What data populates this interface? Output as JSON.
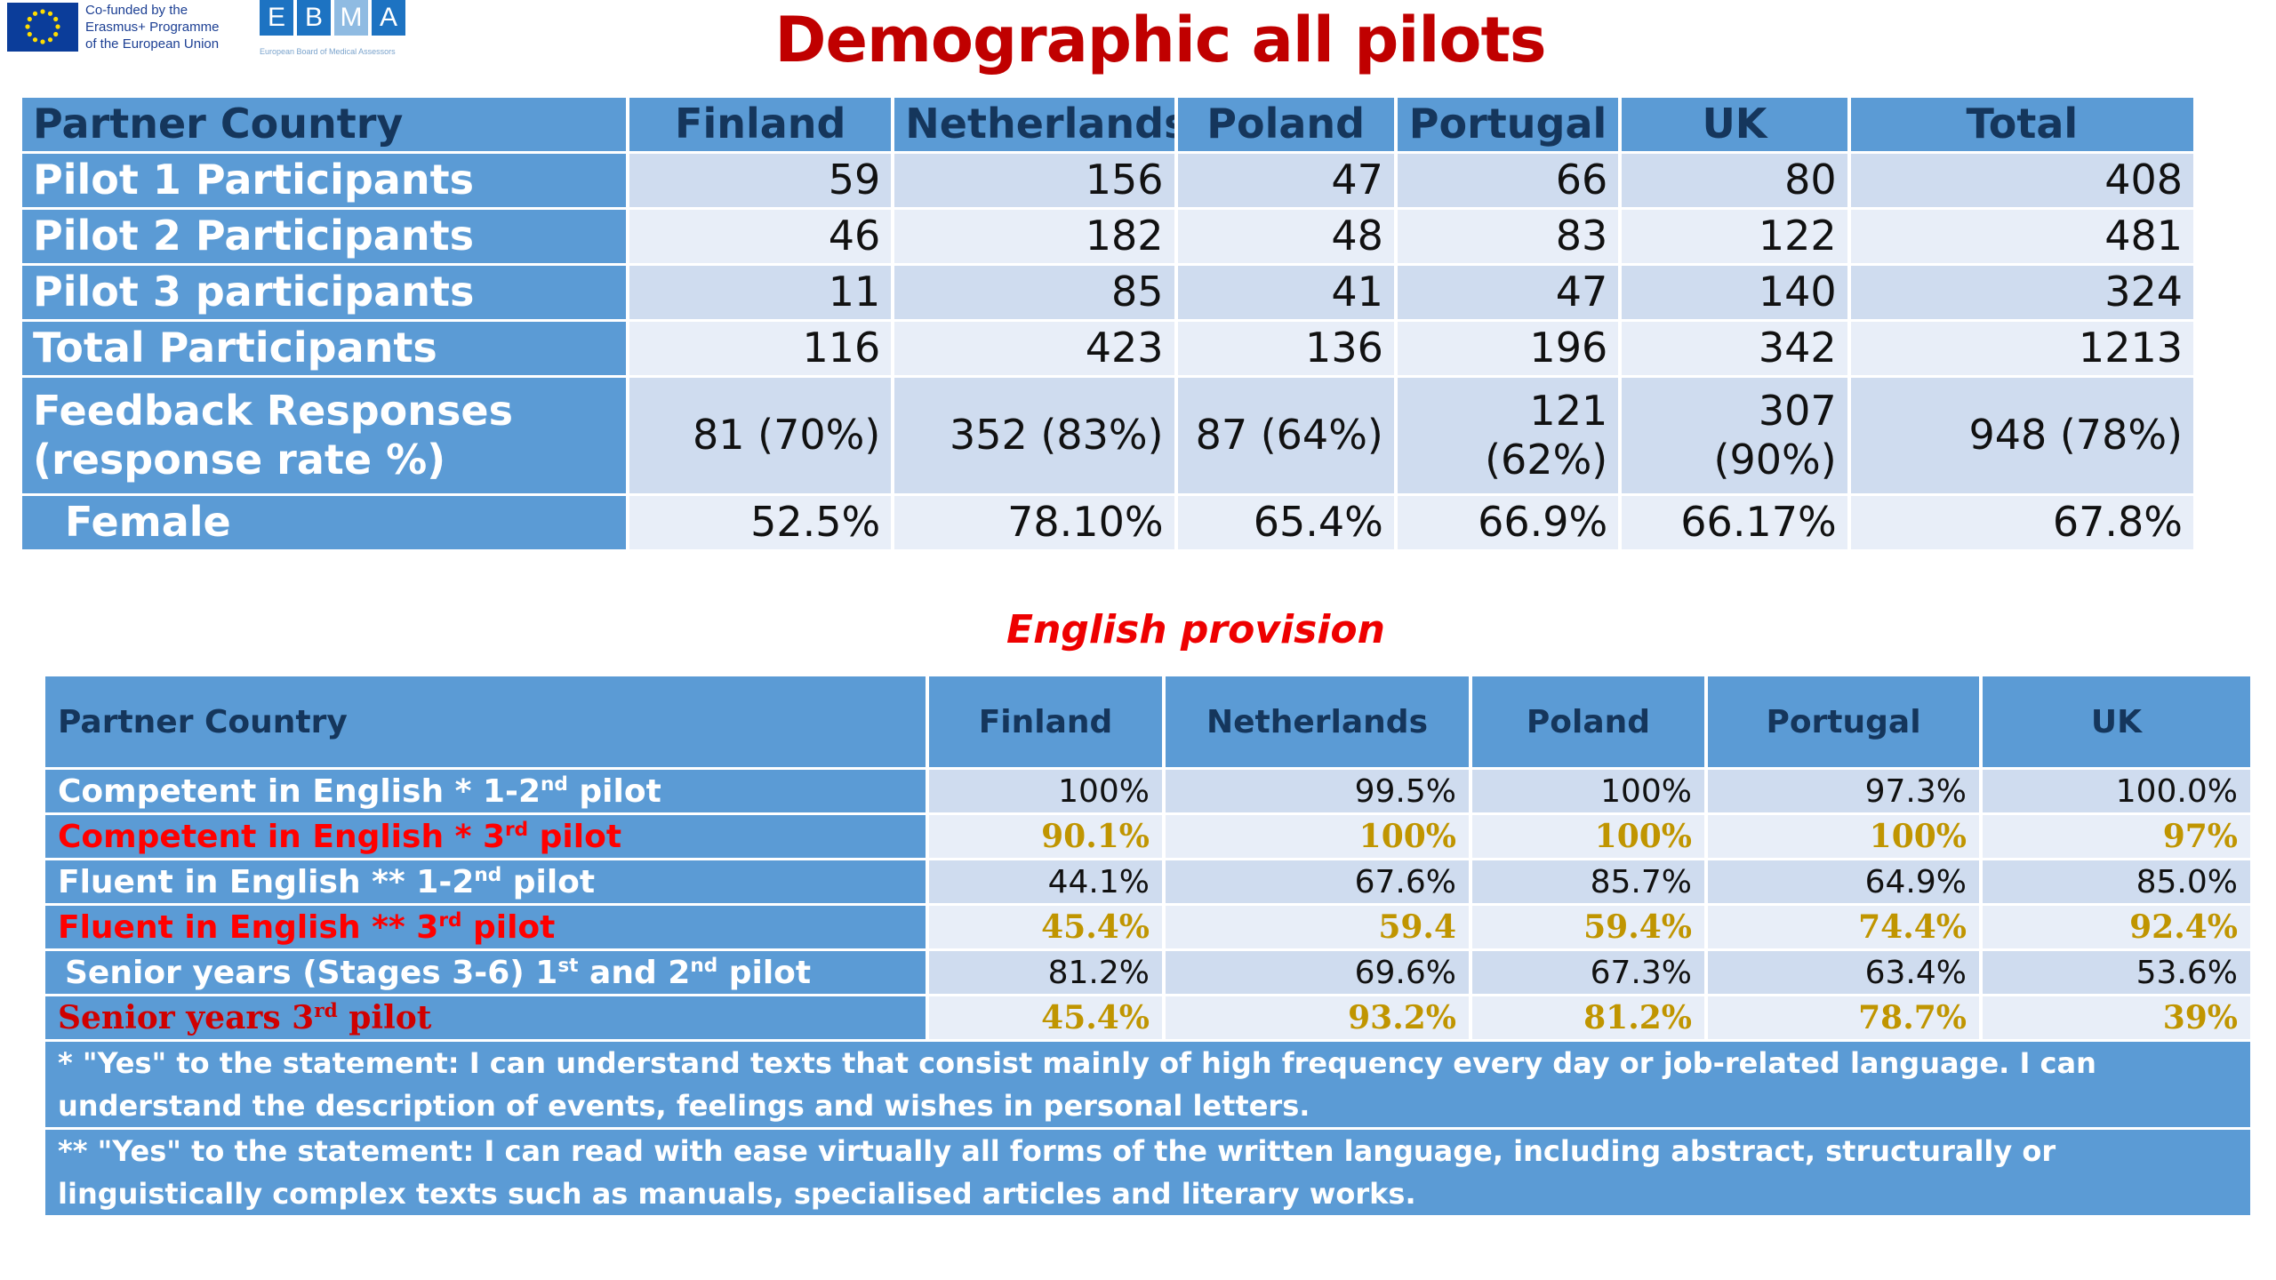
{
  "header": {
    "eu_logo_text": [
      "Co-funded by the",
      "Erasmus+ Programme",
      "of the European Union"
    ],
    "ebma_letters": [
      "E",
      "B",
      "M",
      "A"
    ],
    "ebma_subtitle": "European Board of Medical Assessors",
    "title": "Demographic all pilots"
  },
  "table1": {
    "columns": [
      "Partner Country",
      "Finland",
      "Netherlands",
      "Poland",
      "Portugal",
      "UK",
      "Total"
    ],
    "rows": [
      {
        "label": "Pilot 1 Participants",
        "values": [
          "59",
          "156",
          "47",
          "66",
          "80",
          "408"
        ]
      },
      {
        "label": "Pilot 2 Participants",
        "values": [
          "46",
          "182",
          "48",
          "83",
          "122",
          "481"
        ]
      },
      {
        "label": "Pilot 3 participants",
        "values": [
          "11",
          "85",
          "41",
          "47",
          "140",
          "324"
        ]
      },
      {
        "label": "Total Participants",
        "values": [
          "116",
          "423",
          "136",
          "196",
          "342",
          "1213"
        ]
      },
      {
        "label_line1": "Feedback Responses",
        "label_line2": "(response rate %)",
        "values": [
          "81 (70%)",
          "352 (83%)",
          "87 (64%)",
          "121 (62%)",
          "307 (90%)",
          "948 (78%)"
        ]
      },
      {
        "label": "Female",
        "values": [
          "52.5%",
          "78.10%",
          "65.4%",
          "66.9%",
          "66.17%",
          "67.8%"
        ]
      }
    ]
  },
  "english": {
    "title": "English provision",
    "columns": [
      "Partner Country",
      "Finland",
      "Netherlands",
      "Poland",
      "Portugal",
      "UK"
    ],
    "rows": [
      {
        "label_parts": [
          "Competent in English *  1-2",
          "nd",
          " pilot"
        ],
        "values": [
          "100%",
          "99.5%",
          "100%",
          "97.3%",
          "100.0%"
        ]
      },
      {
        "label_parts": [
          "Competent in English *  3",
          "rd",
          " pilot"
        ],
        "values": [
          "90.1%",
          "100%",
          "100%",
          "100%",
          "97%"
        ]
      },
      {
        "label_parts": [
          "Fluent in English ** 1-2",
          "nd",
          " pilot"
        ],
        "values": [
          "44.1%",
          "67.6%",
          "85.7%",
          "64.9%",
          "85.0%"
        ]
      },
      {
        "label_parts": [
          "Fluent in English ** 3",
          "rd",
          "  pilot"
        ],
        "values": [
          "45.4%",
          "59.4",
          "59.4%",
          "74.4%",
          "92.4%"
        ]
      },
      {
        "label_parts": [
          "Senior years (Stages 3-6) 1",
          "st",
          " and 2",
          "nd",
          " pilot"
        ],
        "values": [
          "81.2%",
          "69.6%",
          "67.3%",
          "63.4%",
          "53.6%"
        ]
      },
      {
        "label_parts": [
          "Senior years 3",
          "rd",
          " pilot"
        ],
        "values": [
          "45.4%",
          "93.2%",
          "81.2%",
          "78.7%",
          "39%"
        ]
      }
    ],
    "notes": [
      "* \"Yes\" to the statement: I can understand texts that consist mainly of high frequency every day or job-related language. I can understand the description of events, feelings and wishes in personal letters.",
      "** \"Yes\" to the statement: I can read with ease virtually all forms of the written language, including abstract, structurally or linguistically complex texts such as manuals, specialised articles and literary works."
    ]
  },
  "colors": {
    "title_red": "#c00000",
    "header_blue": "#5b9bd5",
    "header_text": "#15365c",
    "highlight_gold": "#c09500",
    "label_red": "#ff0000"
  }
}
